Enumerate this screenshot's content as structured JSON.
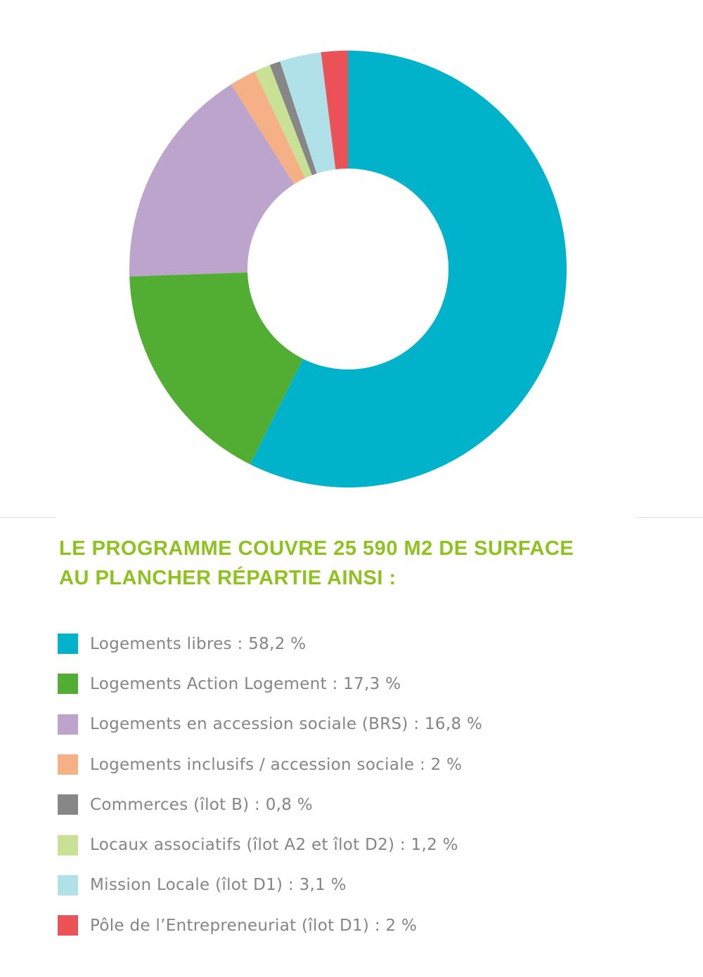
{
  "chart_data": {
    "type": "pie",
    "variant": "donut",
    "title_lines": [
      "LE PROGRAMME COUVRE 25 590 M2 DE SURFACE",
      "AU PLANCHER RÉPARTIE AINSI :"
    ],
    "legend_placement": "bottom",
    "unit": "%",
    "slices": [
      {
        "label": "Logements libres : 58,2 %",
        "value": 58.2,
        "color": "#00b3cb"
      },
      {
        "label": "Logements Action Logement : 17,3 %",
        "value": 17.3,
        "color": "#52ae32"
      },
      {
        "label": "Logements en accession sociale (BRS) : 16,8 %",
        "value": 16.8,
        "color": "#bca4cd"
      },
      {
        "label": "Logements inclusifs / accession sociale : 2 %",
        "value": 2,
        "color": "#f6b086"
      },
      {
        "label": "Commerces (îlot B) : 0,8 %",
        "value": 0.8,
        "color": "#878787"
      },
      {
        "label": "Locaux associatifs (îlot A2 et îlot D2) : 1,2 %",
        "value": 1.2,
        "color": "#c9e194"
      },
      {
        "label": "Mission Locale (îlot D1) : 3,1 %",
        "value": 3.1,
        "color": "#b0e0e8"
      },
      {
        "label": "Pôle de l’Entrepreneuriat (îlot D1) : 2 %",
        "value": 2,
        "color": "#eb5257"
      }
    ]
  }
}
